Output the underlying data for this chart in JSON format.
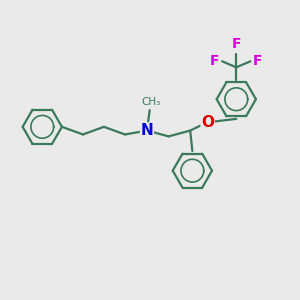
{
  "background_color": "#eaeaea",
  "bond_color": "#3a7a5a",
  "N_color": "#0000dd",
  "O_color": "#dd0000",
  "F_color": "#dd00dd",
  "lw": 1.6,
  "ring_r": 0.72,
  "xlim": [
    0,
    11
  ],
  "ylim": [
    0,
    10
  ]
}
